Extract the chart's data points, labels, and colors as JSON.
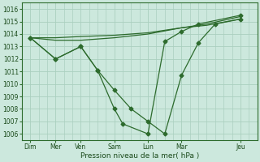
{
  "xlabel": "Pression niveau de la mer( hPa )",
  "bg_color": "#cce8dd",
  "grid_color": "#aacfbf",
  "line_color": "#2d6b2d",
  "ylim": [
    1005.5,
    1016.5
  ],
  "yticks": [
    1006,
    1007,
    1008,
    1009,
    1010,
    1011,
    1012,
    1013,
    1014,
    1015,
    1016
  ],
  "xlim": [
    0,
    14
  ],
  "x_major_labels": [
    "Dim",
    "Mer",
    "Ven",
    "Sam",
    "Lun",
    "Mar",
    "Jeu"
  ],
  "x_major_positions": [
    0.5,
    2.0,
    3.5,
    5.5,
    7.5,
    9.5,
    13.0
  ],
  "lines": [
    {
      "x": [
        0.5,
        2.0,
        3.5,
        5.5,
        7.5,
        9.5,
        11.0,
        13.0
      ],
      "y": [
        1013.7,
        1013.7,
        1013.8,
        1013.9,
        1014.1,
        1014.5,
        1014.7,
        1015.2
      ],
      "marker": null,
      "linewidth": 0.9
    },
    {
      "x": [
        0.5,
        2.0,
        3.5,
        5.5,
        7.5,
        9.5,
        11.0,
        13.0
      ],
      "y": [
        1013.7,
        1013.5,
        1013.5,
        1013.7,
        1014.0,
        1014.5,
        1014.8,
        1015.4
      ],
      "marker": null,
      "linewidth": 0.9
    },
    {
      "x": [
        0.5,
        2.0,
        3.5,
        4.5,
        5.5,
        6.5,
        7.5,
        8.5,
        9.5,
        10.5,
        11.5,
        13.0
      ],
      "y": [
        1013.7,
        1012.0,
        1013.0,
        1011.1,
        1009.5,
        1008.0,
        1007.0,
        1006.0,
        1010.7,
        1013.3,
        1014.8,
        1015.2
      ],
      "marker": "D",
      "markersize": 2.5,
      "linewidth": 0.9
    },
    {
      "x": [
        0.5,
        2.0,
        3.5,
        4.5,
        5.5,
        6.0,
        7.5,
        8.5,
        9.5,
        10.5,
        13.0
      ],
      "y": [
        1013.7,
        1012.0,
        1013.0,
        1011.1,
        1008.0,
        1006.8,
        1006.0,
        1013.4,
        1014.2,
        1014.8,
        1015.5
      ],
      "marker": "D",
      "markersize": 2.5,
      "linewidth": 0.9
    }
  ]
}
